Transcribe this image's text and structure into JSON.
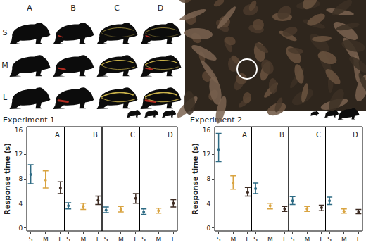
{
  "stimuli": {
    "columns": [
      "A",
      "B",
      "C",
      "D"
    ],
    "rows": [
      "S",
      "M",
      "L"
    ]
  },
  "chart_data": [
    {
      "type": "scatter",
      "title": "Experiment 1",
      "ylabel": "Response time (s)",
      "categories": [
        "S",
        "M",
        "L"
      ],
      "colors": [
        "#2e6b84",
        "#d9a441",
        "#3d2b22"
      ],
      "ylim": [
        -0.5,
        16.5
      ],
      "yticks": [
        0,
        4,
        8,
        12,
        16
      ],
      "grid": false,
      "marker": "circle",
      "panels": [
        {
          "name": "A",
          "values": [
            8.7,
            7.8,
            6.5
          ],
          "lower": [
            7.2,
            6.5,
            5.6
          ],
          "upper": [
            10.3,
            9.3,
            7.5
          ]
        },
        {
          "name": "B",
          "values": [
            3.6,
            3.5,
            4.5
          ],
          "lower": [
            3.1,
            3.0,
            3.8
          ],
          "upper": [
            4.1,
            4.0,
            5.2
          ]
        },
        {
          "name": "C",
          "values": [
            2.9,
            3.0,
            4.8
          ],
          "lower": [
            2.5,
            2.6,
            4.0
          ],
          "upper": [
            3.4,
            3.5,
            5.6
          ]
        },
        {
          "name": "D",
          "values": [
            2.6,
            2.8,
            4.0
          ],
          "lower": [
            2.2,
            2.4,
            3.4
          ],
          "upper": [
            3.1,
            3.2,
            4.6
          ]
        }
      ]
    },
    {
      "type": "scatter",
      "title": "Experiment 2",
      "ylabel": "Response time (s)",
      "categories": [
        "S",
        "M",
        "L"
      ],
      "colors": [
        "#2e6b84",
        "#d9a441",
        "#3d2b22"
      ],
      "ylim": [
        -0.5,
        16.5
      ],
      "yticks": [
        0,
        4,
        8,
        12,
        16
      ],
      "grid": false,
      "marker": "circle",
      "panels": [
        {
          "name": "A",
          "values": [
            12.8,
            7.3,
            5.8
          ],
          "lower": [
            10.8,
            6.3,
            5.2
          ],
          "upper": [
            15.4,
            8.5,
            6.6
          ]
        },
        {
          "name": "B",
          "values": [
            6.4,
            3.6,
            3.1
          ],
          "lower": [
            5.6,
            3.1,
            2.7
          ],
          "upper": [
            7.3,
            4.0,
            3.5
          ]
        },
        {
          "name": "C",
          "values": [
            4.4,
            3.1,
            3.3
          ],
          "lower": [
            3.8,
            2.7,
            2.8
          ],
          "upper": [
            5.1,
            3.5,
            3.7
          ]
        },
        {
          "name": "D",
          "values": [
            4.4,
            2.7,
            2.6
          ],
          "lower": [
            3.8,
            2.4,
            2.3
          ],
          "upper": [
            5.0,
            3.1,
            3.0
          ]
        }
      ]
    }
  ]
}
